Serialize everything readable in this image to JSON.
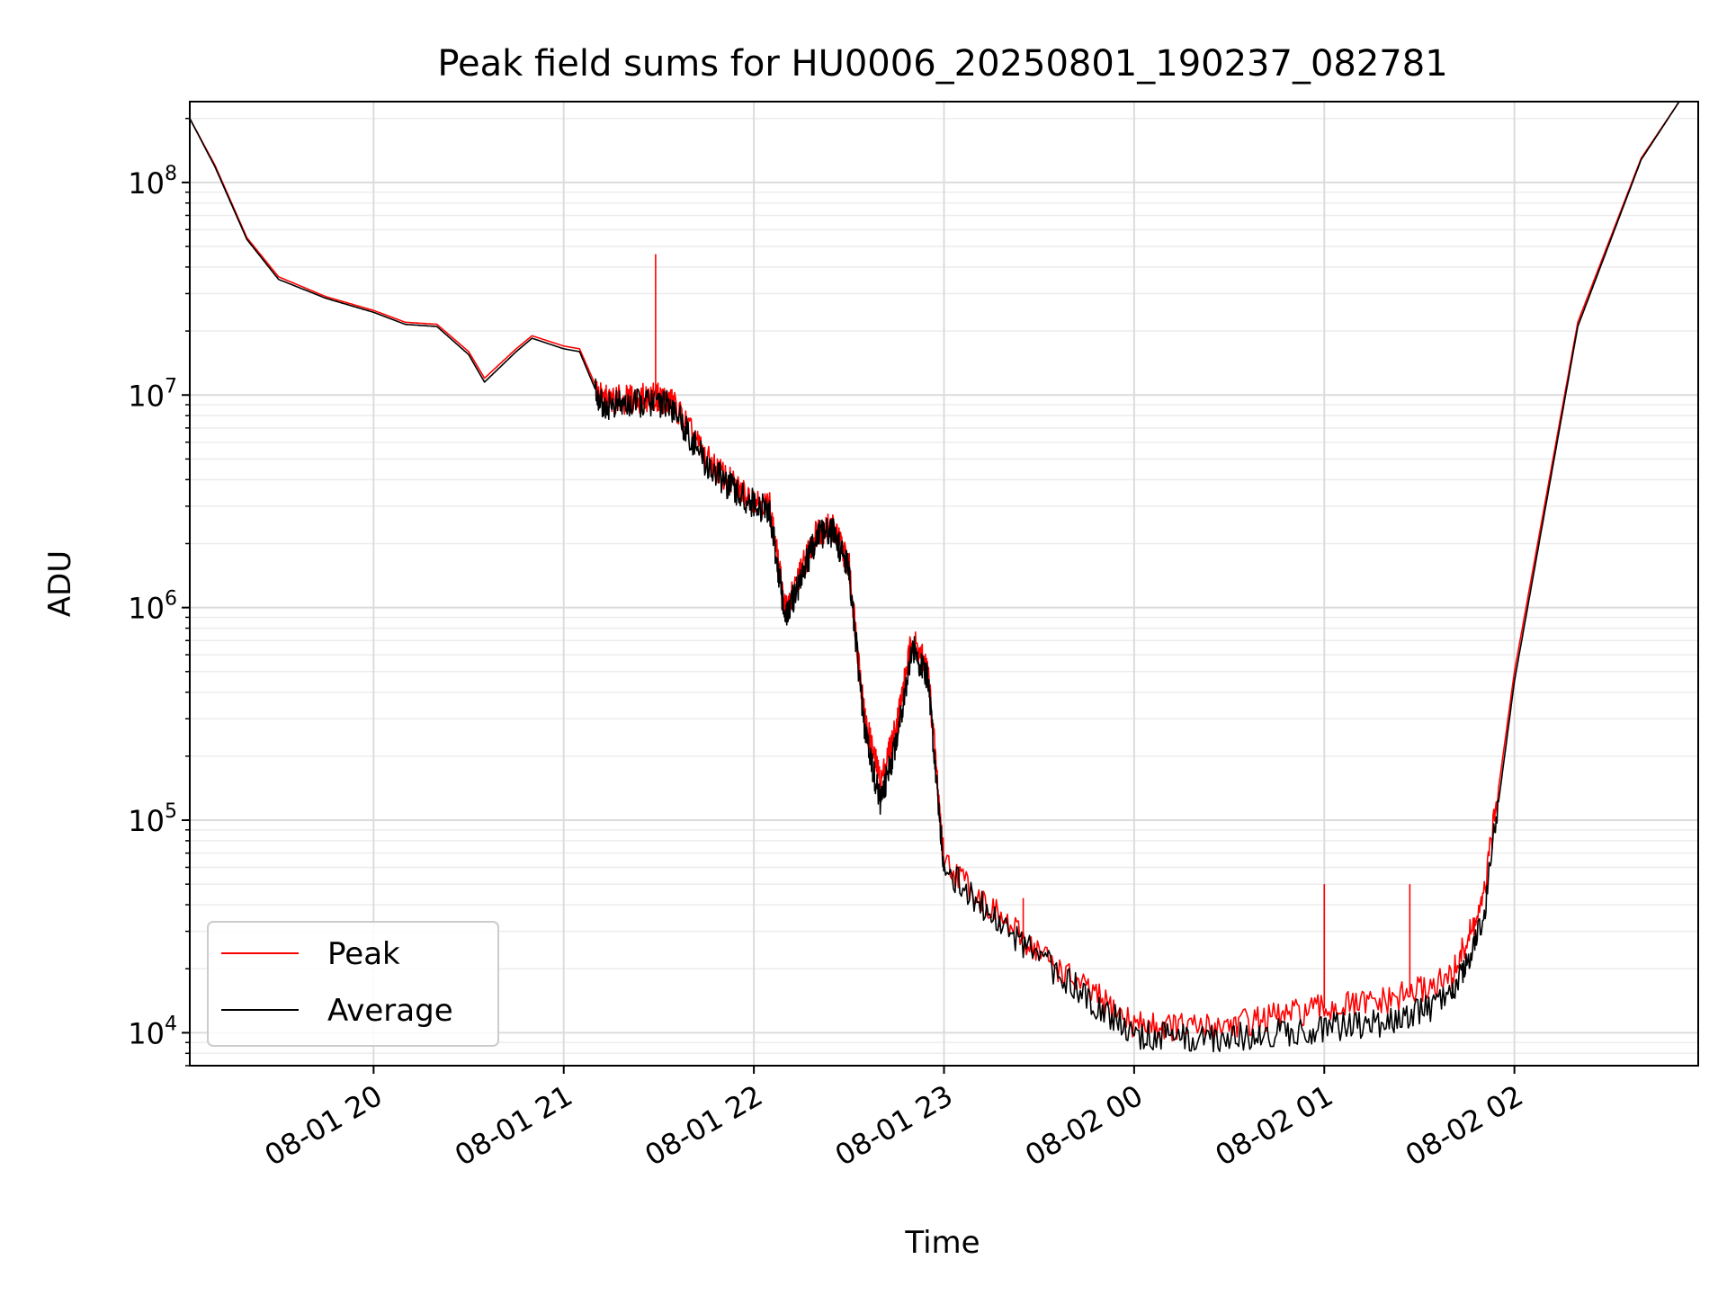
{
  "chart_data": {
    "type": "line",
    "title": "Peak field sums for HU0006_20250801_190237_082781",
    "xlabel": "Time",
    "ylabel": "ADU",
    "yscale": "log",
    "xlim": [
      "2025-08-01 19:02",
      "2025-08-02 02:58"
    ],
    "ylim": [
      7000,
      240000000
    ],
    "grid": true,
    "legend_position": "lower-left",
    "x_ticks": [
      {
        "value": "2025-08-01 20:00",
        "label": "08-01 20"
      },
      {
        "value": "2025-08-01 21:00",
        "label": "08-01 21"
      },
      {
        "value": "2025-08-01 22:00",
        "label": "08-01 22"
      },
      {
        "value": "2025-08-01 23:00",
        "label": "08-01 23"
      },
      {
        "value": "2025-08-02 00:00",
        "label": "08-02 00"
      },
      {
        "value": "2025-08-02 01:00",
        "label": "08-02 01"
      },
      {
        "value": "2025-08-02 02:00",
        "label": "08-02 02"
      }
    ],
    "y_ticks": [
      {
        "value": 10000,
        "base": "10",
        "exp": "4"
      },
      {
        "value": 100000,
        "base": "10",
        "exp": "5"
      },
      {
        "value": 1000000,
        "base": "10",
        "exp": "6"
      },
      {
        "value": 10000000,
        "base": "10",
        "exp": "7"
      },
      {
        "value": 100000000,
        "base": "10",
        "exp": "8"
      }
    ],
    "series": [
      {
        "name": "Peak",
        "color": "#ff0000",
        "x": [
          "2025-08-01 19:02",
          "2025-08-01 19:10",
          "2025-08-01 19:20",
          "2025-08-01 19:30",
          "2025-08-01 19:45",
          "2025-08-01 20:00",
          "2025-08-01 20:10",
          "2025-08-01 20:20",
          "2025-08-01 20:30",
          "2025-08-01 20:35",
          "2025-08-01 20:45",
          "2025-08-01 20:50",
          "2025-08-01 21:00",
          "2025-08-01 21:05",
          "2025-08-01 21:12",
          "2025-08-01 21:20",
          "2025-08-01 21:30",
          "2025-08-01 21:35",
          "2025-08-01 21:45",
          "2025-08-01 21:55",
          "2025-08-01 22:05",
          "2025-08-01 22:10",
          "2025-08-01 22:15",
          "2025-08-01 22:20",
          "2025-08-01 22:25",
          "2025-08-01 22:30",
          "2025-08-01 22:35",
          "2025-08-01 22:40",
          "2025-08-01 22:45",
          "2025-08-01 22:50",
          "2025-08-01 22:55",
          "2025-08-01 23:00",
          "2025-08-01 23:20",
          "2025-08-01 23:40",
          "2025-08-02 00:00",
          "2025-08-02 00:20",
          "2025-08-02 00:40",
          "2025-08-02 01:00",
          "2025-08-02 01:20",
          "2025-08-02 01:40",
          "2025-08-02 01:50",
          "2025-08-02 02:00",
          "2025-08-02 02:20",
          "2025-08-02 02:40",
          "2025-08-02 02:52"
        ],
        "values": [
          200000000,
          120000000,
          55000000,
          36000000,
          29000000,
          25000000,
          22000000,
          21500000,
          16000000,
          12000000,
          16500000,
          19000000,
          17000000,
          16500000,
          9500000,
          9500000,
          9800000,
          9000000,
          5000000,
          3600000,
          3000000,
          950000,
          1500000,
          2300000,
          2400000,
          1600000,
          300000,
          150000,
          280000,
          720000,
          500000,
          65000,
          32000,
          18000,
          11000,
          10500,
          11500,
          13000,
          14000,
          18000,
          40000,
          500000,
          22000000,
          130000000,
          240000000
        ]
      },
      {
        "name": "Average",
        "color": "#000000",
        "x": [
          "2025-08-01 19:02",
          "2025-08-01 19:10",
          "2025-08-01 19:20",
          "2025-08-01 19:30",
          "2025-08-01 19:45",
          "2025-08-01 20:00",
          "2025-08-01 20:10",
          "2025-08-01 20:20",
          "2025-08-01 20:30",
          "2025-08-01 20:35",
          "2025-08-01 20:45",
          "2025-08-01 20:50",
          "2025-08-01 21:00",
          "2025-08-01 21:05",
          "2025-08-01 21:12",
          "2025-08-01 21:20",
          "2025-08-01 21:30",
          "2025-08-01 21:35",
          "2025-08-01 21:45",
          "2025-08-01 21:55",
          "2025-08-01 22:05",
          "2025-08-01 22:10",
          "2025-08-01 22:15",
          "2025-08-01 22:20",
          "2025-08-01 22:25",
          "2025-08-01 22:30",
          "2025-08-01 22:35",
          "2025-08-01 22:40",
          "2025-08-01 22:45",
          "2025-08-01 22:50",
          "2025-08-01 22:55",
          "2025-08-01 23:00",
          "2025-08-01 23:20",
          "2025-08-01 23:40",
          "2025-08-02 00:00",
          "2025-08-02 00:20",
          "2025-08-02 00:40",
          "2025-08-02 01:00",
          "2025-08-02 01:20",
          "2025-08-02 01:40",
          "2025-08-02 01:50",
          "2025-08-02 02:00",
          "2025-08-02 02:20",
          "2025-08-02 02:40",
          "2025-08-02 02:52"
        ],
        "values": [
          200000000,
          118000000,
          54000000,
          35000000,
          28500000,
          24500000,
          21500000,
          21000000,
          15500000,
          11500000,
          16000000,
          18500000,
          16500000,
          16000000,
          9000000,
          9000000,
          9300000,
          8600000,
          4700000,
          3400000,
          2800000,
          880000,
          1400000,
          2200000,
          2250000,
          1500000,
          260000,
          120000,
          240000,
          650000,
          450000,
          60000,
          30000,
          17000,
          9800,
          9300,
          9800,
          10500,
          11000,
          14500,
          33000,
          450000,
          21000000,
          128000000,
          240000000
        ]
      }
    ],
    "spikes": [
      {
        "series": "Peak",
        "x": "2025-08-01 21:29",
        "value": 46000000
      },
      {
        "series": "Peak",
        "x": "2025-08-02 01:00",
        "value": 50000
      },
      {
        "series": "Peak",
        "x": "2025-08-02 01:27",
        "value": 50000
      },
      {
        "series": "Peak",
        "x": "2025-08-01 23:25",
        "value": 43000
      }
    ]
  }
}
